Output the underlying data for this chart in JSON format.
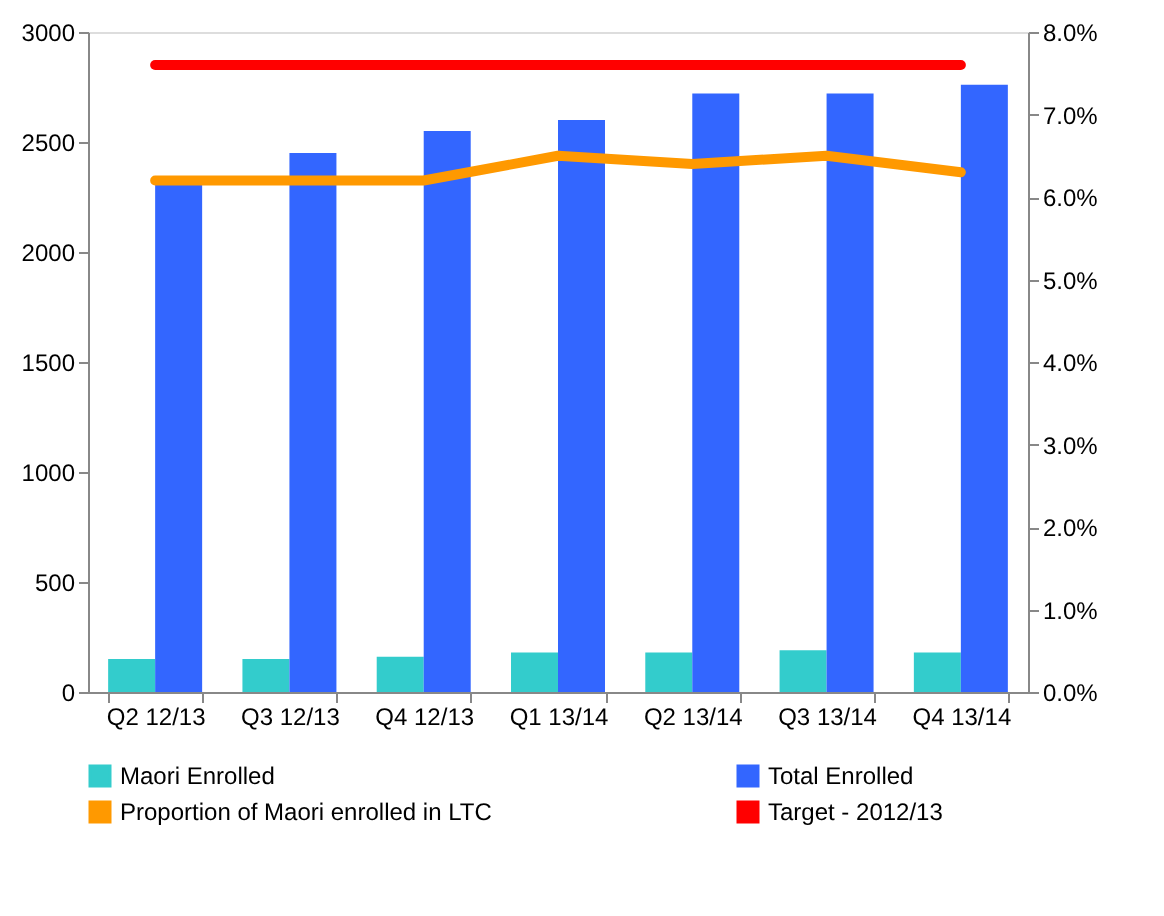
{
  "chart_data": {
    "type": "bar",
    "categories": [
      "Q2 12/13",
      "Q3 12/13",
      "Q4 12/13",
      "Q1 13/14",
      "Q2 13/14",
      "Q3 13/14",
      "Q4 13/14"
    ],
    "series": [
      {
        "name": "Maori Enrolled",
        "color": "#33cccc",
        "values": [
          150,
          150,
          160,
          180,
          180,
          190,
          180
        ]
      },
      {
        "name": "Total Enrolled",
        "color": "#3366ff",
        "values": [
          2330,
          2450,
          2550,
          2600,
          2720,
          2720,
          2760
        ]
      },
      {
        "name": "Proportion of Maori enrolled in LTC",
        "type": "line",
        "axis": "y2",
        "color": "#ff9900",
        "values": [
          6.2,
          6.2,
          6.2,
          6.5,
          6.4,
          6.5,
          6.3
        ]
      },
      {
        "name": "Target - 2012/13",
        "type": "line",
        "axis": "y2",
        "color": "#ff0000",
        "values": [
          7.6,
          7.6,
          7.6,
          7.6,
          7.6,
          7.6,
          7.6
        ]
      }
    ],
    "ylim": [
      0,
      3000
    ],
    "yticks": [
      0,
      500,
      1000,
      1500,
      2000,
      2500,
      3000
    ],
    "y2lim": [
      0,
      8
    ],
    "y2ticks": [
      {
        "value": 0,
        "label": "0.0%"
      },
      {
        "value": 1,
        "label": "1.0%"
      },
      {
        "value": 2,
        "label": "2.0%"
      },
      {
        "value": 3,
        "label": "3.0%"
      },
      {
        "value": 4,
        "label": "4.0%"
      },
      {
        "value": 5,
        "label": "5.0%"
      },
      {
        "value": 6,
        "label": "6.0%"
      },
      {
        "value": 7,
        "label": "7.0%"
      },
      {
        "value": 8,
        "label": "8.0%"
      }
    ],
    "grid": false,
    "legend": "bottom"
  }
}
